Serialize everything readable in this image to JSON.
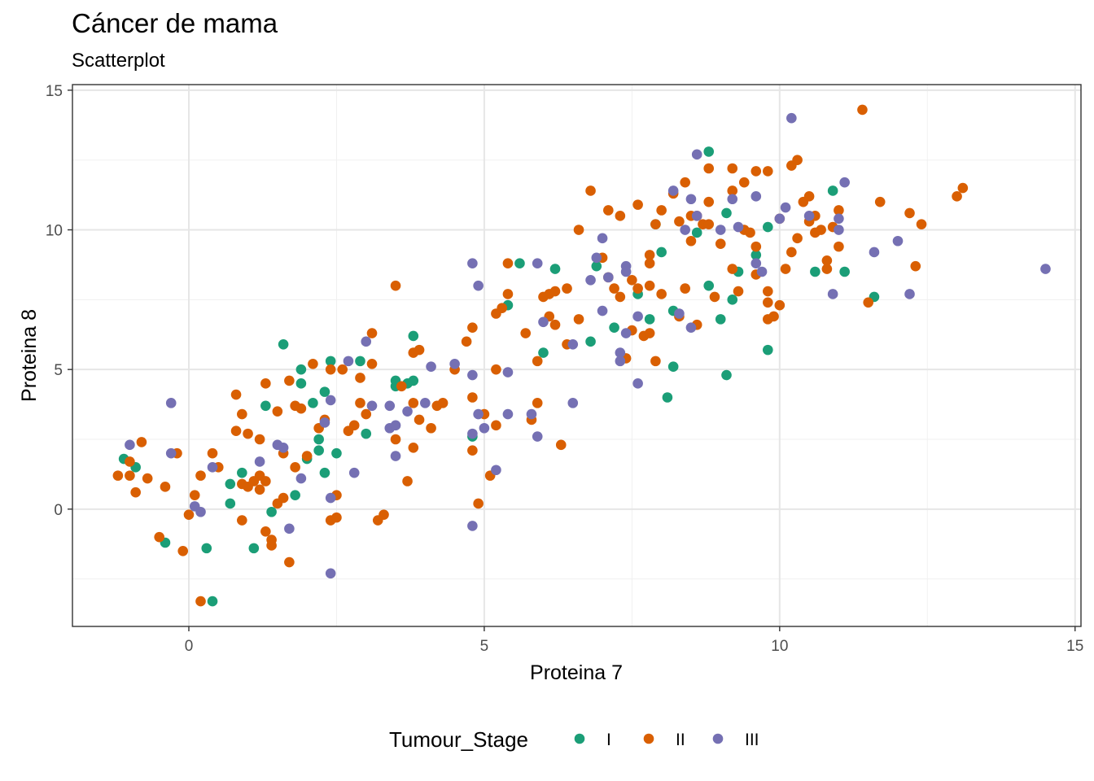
{
  "chart_data": {
    "type": "scatter",
    "title": "Cáncer de mama",
    "subtitle": "Scatterplot",
    "xlabel": "Proteina 7",
    "ylabel": "Proteina 8",
    "xlim": [
      -1.97,
      15.1
    ],
    "ylim": [
      -4.2,
      15.2
    ],
    "xticks": [
      0,
      5,
      10,
      15
    ],
    "yticks": [
      0,
      5,
      10,
      15
    ],
    "grid": true,
    "legend": {
      "title": "Tumour_Stage",
      "position": "bottom"
    },
    "series": [
      {
        "name": "I",
        "color": "#1b9e77",
        "points": [
          [
            -1.1,
            1.8
          ],
          [
            -0.9,
            1.5
          ],
          [
            -0.4,
            -1.2
          ],
          [
            0.3,
            -1.4
          ],
          [
            0.4,
            -3.3
          ],
          [
            0.7,
            0.9
          ],
          [
            0.7,
            0.2
          ],
          [
            0.9,
            1.3
          ],
          [
            1.1,
            -1.4
          ],
          [
            1.3,
            3.7
          ],
          [
            1.4,
            -0.1
          ],
          [
            1.6,
            5.9
          ],
          [
            1.8,
            0.5
          ],
          [
            1.9,
            5.0
          ],
          [
            1.9,
            4.5
          ],
          [
            2.0,
            1.8
          ],
          [
            2.1,
            3.8
          ],
          [
            2.2,
            2.1
          ],
          [
            2.3,
            1.3
          ],
          [
            2.3,
            4.2
          ],
          [
            2.2,
            2.5
          ],
          [
            2.4,
            5.3
          ],
          [
            2.5,
            2.0
          ],
          [
            2.9,
            5.3
          ],
          [
            3.0,
            2.7
          ],
          [
            3.5,
            4.6
          ],
          [
            3.5,
            4.4
          ],
          [
            3.7,
            4.5
          ],
          [
            3.8,
            4.6
          ],
          [
            3.8,
            6.2
          ],
          [
            4.8,
            2.6
          ],
          [
            5.4,
            7.3
          ],
          [
            5.6,
            8.8
          ],
          [
            6.0,
            5.6
          ],
          [
            6.2,
            8.6
          ],
          [
            6.8,
            6.0
          ],
          [
            6.9,
            8.7
          ],
          [
            7.2,
            6.5
          ],
          [
            7.6,
            7.7
          ],
          [
            7.8,
            6.8
          ],
          [
            7.9,
            10.2
          ],
          [
            8.0,
            9.2
          ],
          [
            8.1,
            4.0
          ],
          [
            8.2,
            5.1
          ],
          [
            8.2,
            7.1
          ],
          [
            8.6,
            9.9
          ],
          [
            8.8,
            12.8
          ],
          [
            8.8,
            8.0
          ],
          [
            9.0,
            6.8
          ],
          [
            9.1,
            4.8
          ],
          [
            9.1,
            10.6
          ],
          [
            9.2,
            7.5
          ],
          [
            9.3,
            8.5
          ],
          [
            9.6,
            9.1
          ],
          [
            9.8,
            5.7
          ],
          [
            9.8,
            10.1
          ],
          [
            10.6,
            8.5
          ],
          [
            10.9,
            11.4
          ],
          [
            11.1,
            8.5
          ],
          [
            11.6,
            7.6
          ]
        ]
      },
      {
        "name": "II",
        "color": "#d95f02",
        "points": [
          [
            -1.2,
            1.2
          ],
          [
            -1.0,
            1.7
          ],
          [
            -1.0,
            1.2
          ],
          [
            -0.9,
            0.6
          ],
          [
            -0.8,
            2.4
          ],
          [
            -0.7,
            1.1
          ],
          [
            -0.5,
            -1.0
          ],
          [
            -0.4,
            0.8
          ],
          [
            -0.2,
            2.0
          ],
          [
            -0.1,
            -1.5
          ],
          [
            0.0,
            -0.2
          ],
          [
            0.1,
            0.5
          ],
          [
            0.2,
            1.2
          ],
          [
            0.2,
            -3.3
          ],
          [
            0.4,
            2.0
          ],
          [
            0.5,
            1.5
          ],
          [
            0.8,
            2.8
          ],
          [
            0.8,
            4.1
          ],
          [
            0.9,
            -0.4
          ],
          [
            0.9,
            3.4
          ],
          [
            0.9,
            0.9
          ],
          [
            1.0,
            0.8
          ],
          [
            1.0,
            2.7
          ],
          [
            1.1,
            1.0
          ],
          [
            1.2,
            2.5
          ],
          [
            1.2,
            0.7
          ],
          [
            1.2,
            1.2
          ],
          [
            1.3,
            4.5
          ],
          [
            1.3,
            1.0
          ],
          [
            1.3,
            -0.8
          ],
          [
            1.4,
            -1.3
          ],
          [
            1.4,
            -1.1
          ],
          [
            1.5,
            0.2
          ],
          [
            1.5,
            3.5
          ],
          [
            1.6,
            2.0
          ],
          [
            1.6,
            0.4
          ],
          [
            1.7,
            -1.9
          ],
          [
            1.7,
            4.6
          ],
          [
            1.8,
            1.5
          ],
          [
            1.8,
            3.7
          ],
          [
            1.9,
            3.6
          ],
          [
            2.0,
            1.9
          ],
          [
            2.1,
            5.2
          ],
          [
            2.2,
            2.9
          ],
          [
            2.3,
            3.2
          ],
          [
            2.4,
            5.0
          ],
          [
            2.4,
            -0.4
          ],
          [
            2.5,
            -0.3
          ],
          [
            2.5,
            0.5
          ],
          [
            2.6,
            5.0
          ],
          [
            2.7,
            2.8
          ],
          [
            2.8,
            3.0
          ],
          [
            2.9,
            4.7
          ],
          [
            2.9,
            3.8
          ],
          [
            3.0,
            3.4
          ],
          [
            3.1,
            5.2
          ],
          [
            3.1,
            6.3
          ],
          [
            3.2,
            -0.4
          ],
          [
            3.3,
            -0.2
          ],
          [
            3.5,
            8.0
          ],
          [
            3.5,
            2.5
          ],
          [
            3.6,
            4.4
          ],
          [
            3.7,
            1.0
          ],
          [
            3.8,
            2.2
          ],
          [
            3.8,
            3.8
          ],
          [
            3.9,
            3.2
          ],
          [
            3.8,
            5.6
          ],
          [
            3.9,
            5.7
          ],
          [
            4.1,
            2.9
          ],
          [
            4.2,
            3.7
          ],
          [
            4.3,
            3.8
          ],
          [
            4.5,
            5.0
          ],
          [
            4.7,
            6.0
          ],
          [
            4.8,
            6.5
          ],
          [
            4.8,
            4.0
          ],
          [
            4.8,
            2.1
          ],
          [
            4.9,
            0.2
          ],
          [
            5.0,
            3.4
          ],
          [
            5.1,
            1.2
          ],
          [
            5.2,
            3.0
          ],
          [
            5.2,
            7.0
          ],
          [
            5.2,
            5.0
          ],
          [
            5.4,
            7.7
          ],
          [
            5.4,
            8.8
          ],
          [
            5.3,
            7.2
          ],
          [
            5.7,
            6.3
          ],
          [
            5.8,
            3.2
          ],
          [
            5.9,
            3.8
          ],
          [
            5.9,
            5.3
          ],
          [
            6.0,
            7.6
          ],
          [
            6.1,
            6.9
          ],
          [
            6.1,
            7.7
          ],
          [
            6.2,
            6.6
          ],
          [
            6.2,
            7.8
          ],
          [
            6.3,
            2.3
          ],
          [
            6.4,
            5.9
          ],
          [
            6.4,
            7.9
          ],
          [
            6.6,
            6.8
          ],
          [
            6.6,
            10.0
          ],
          [
            6.8,
            11.4
          ],
          [
            7.0,
            9.0
          ],
          [
            7.1,
            8.3
          ],
          [
            7.1,
            10.7
          ],
          [
            7.2,
            7.9
          ],
          [
            7.3,
            7.6
          ],
          [
            7.3,
            10.5
          ],
          [
            7.4,
            5.4
          ],
          [
            7.5,
            8.2
          ],
          [
            7.5,
            6.4
          ],
          [
            7.6,
            10.9
          ],
          [
            7.6,
            7.9
          ],
          [
            7.7,
            6.2
          ],
          [
            7.8,
            9.1
          ],
          [
            7.8,
            6.3
          ],
          [
            7.8,
            8.0
          ],
          [
            7.8,
            8.8
          ],
          [
            7.9,
            10.2
          ],
          [
            7.9,
            5.3
          ],
          [
            8.0,
            10.7
          ],
          [
            8.0,
            7.7
          ],
          [
            8.2,
            11.3
          ],
          [
            8.3,
            10.3
          ],
          [
            8.3,
            6.9
          ],
          [
            8.4,
            7.9
          ],
          [
            8.4,
            11.7
          ],
          [
            8.5,
            9.6
          ],
          [
            8.5,
            10.5
          ],
          [
            8.6,
            6.6
          ],
          [
            8.6,
            10.5
          ],
          [
            8.7,
            10.2
          ],
          [
            8.8,
            12.2
          ],
          [
            8.8,
            11.0
          ],
          [
            8.8,
            10.2
          ],
          [
            8.9,
            7.6
          ],
          [
            9.0,
            9.5
          ],
          [
            9.2,
            8.6
          ],
          [
            9.2,
            11.4
          ],
          [
            9.2,
            12.2
          ],
          [
            9.3,
            7.8
          ],
          [
            9.4,
            11.7
          ],
          [
            9.4,
            10.0
          ],
          [
            9.5,
            9.9
          ],
          [
            9.6,
            9.4
          ],
          [
            9.6,
            8.4
          ],
          [
            9.6,
            12.1
          ],
          [
            9.8,
            7.4
          ],
          [
            9.8,
            12.1
          ],
          [
            9.8,
            7.8
          ],
          [
            9.8,
            6.8
          ],
          [
            9.9,
            6.9
          ],
          [
            10.0,
            10.4
          ],
          [
            10.0,
            7.3
          ],
          [
            10.1,
            8.6
          ],
          [
            10.2,
            9.2
          ],
          [
            10.2,
            12.3
          ],
          [
            10.3,
            9.7
          ],
          [
            10.3,
            12.5
          ],
          [
            10.4,
            11.0
          ],
          [
            10.5,
            10.3
          ],
          [
            10.5,
            11.2
          ],
          [
            10.6,
            10.5
          ],
          [
            10.6,
            9.9
          ],
          [
            10.7,
            10.0
          ],
          [
            10.8,
            8.9
          ],
          [
            10.8,
            8.6
          ],
          [
            10.9,
            10.1
          ],
          [
            11.0,
            10.7
          ],
          [
            11.0,
            9.4
          ],
          [
            11.4,
            14.3
          ],
          [
            11.5,
            7.4
          ],
          [
            11.7,
            11.0
          ],
          [
            12.2,
            10.6
          ],
          [
            12.3,
            8.7
          ],
          [
            12.4,
            10.2
          ],
          [
            13.0,
            11.2
          ],
          [
            13.1,
            11.5
          ]
        ]
      },
      {
        "name": "III",
        "color": "#7570b3",
        "points": [
          [
            -1.0,
            2.3
          ],
          [
            -0.3,
            2.0
          ],
          [
            -0.3,
            3.8
          ],
          [
            0.1,
            0.1
          ],
          [
            0.2,
            -0.1
          ],
          [
            0.4,
            1.5
          ],
          [
            1.2,
            1.7
          ],
          [
            1.5,
            2.3
          ],
          [
            1.6,
            2.2
          ],
          [
            1.7,
            -0.7
          ],
          [
            1.9,
            1.1
          ],
          [
            2.3,
            3.1
          ],
          [
            2.4,
            0.4
          ],
          [
            2.4,
            3.9
          ],
          [
            2.4,
            -2.3
          ],
          [
            2.7,
            5.3
          ],
          [
            2.8,
            1.3
          ],
          [
            3.0,
            6.0
          ],
          [
            3.1,
            3.7
          ],
          [
            3.4,
            2.9
          ],
          [
            3.4,
            3.7
          ],
          [
            3.5,
            3.0
          ],
          [
            3.5,
            1.9
          ],
          [
            3.7,
            3.5
          ],
          [
            4.0,
            3.8
          ],
          [
            4.1,
            5.1
          ],
          [
            4.5,
            5.2
          ],
          [
            4.8,
            8.8
          ],
          [
            4.8,
            4.8
          ],
          [
            4.8,
            2.7
          ],
          [
            4.8,
            -0.6
          ],
          [
            4.9,
            8.0
          ],
          [
            4.9,
            3.4
          ],
          [
            5.0,
            2.9
          ],
          [
            5.2,
            1.4
          ],
          [
            5.4,
            3.4
          ],
          [
            5.4,
            4.9
          ],
          [
            5.8,
            3.4
          ],
          [
            5.9,
            2.6
          ],
          [
            5.9,
            8.8
          ],
          [
            6.0,
            6.7
          ],
          [
            6.5,
            5.9
          ],
          [
            6.5,
            3.8
          ],
          [
            6.8,
            8.2
          ],
          [
            6.9,
            9.0
          ],
          [
            7.0,
            9.7
          ],
          [
            7.0,
            7.1
          ],
          [
            7.1,
            8.3
          ],
          [
            7.3,
            5.6
          ],
          [
            7.3,
            5.3
          ],
          [
            7.4,
            6.3
          ],
          [
            7.4,
            8.5
          ],
          [
            7.4,
            8.7
          ],
          [
            7.6,
            6.9
          ],
          [
            7.6,
            4.5
          ],
          [
            8.2,
            11.4
          ],
          [
            8.3,
            7.0
          ],
          [
            8.4,
            10.0
          ],
          [
            8.5,
            6.5
          ],
          [
            8.5,
            11.1
          ],
          [
            8.6,
            12.7
          ],
          [
            8.6,
            10.5
          ],
          [
            9.0,
            10.0
          ],
          [
            9.2,
            11.1
          ],
          [
            9.3,
            10.1
          ],
          [
            9.6,
            8.8
          ],
          [
            9.6,
            11.2
          ],
          [
            9.7,
            8.5
          ],
          [
            10.1,
            10.8
          ],
          [
            10.0,
            10.4
          ],
          [
            10.2,
            14.0
          ],
          [
            10.5,
            10.5
          ],
          [
            10.9,
            7.7
          ],
          [
            11.0,
            10.4
          ],
          [
            11.0,
            10.0
          ],
          [
            11.1,
            11.7
          ],
          [
            11.6,
            9.2
          ],
          [
            12.0,
            9.6
          ],
          [
            12.2,
            7.7
          ],
          [
            14.5,
            8.6
          ]
        ]
      }
    ]
  }
}
